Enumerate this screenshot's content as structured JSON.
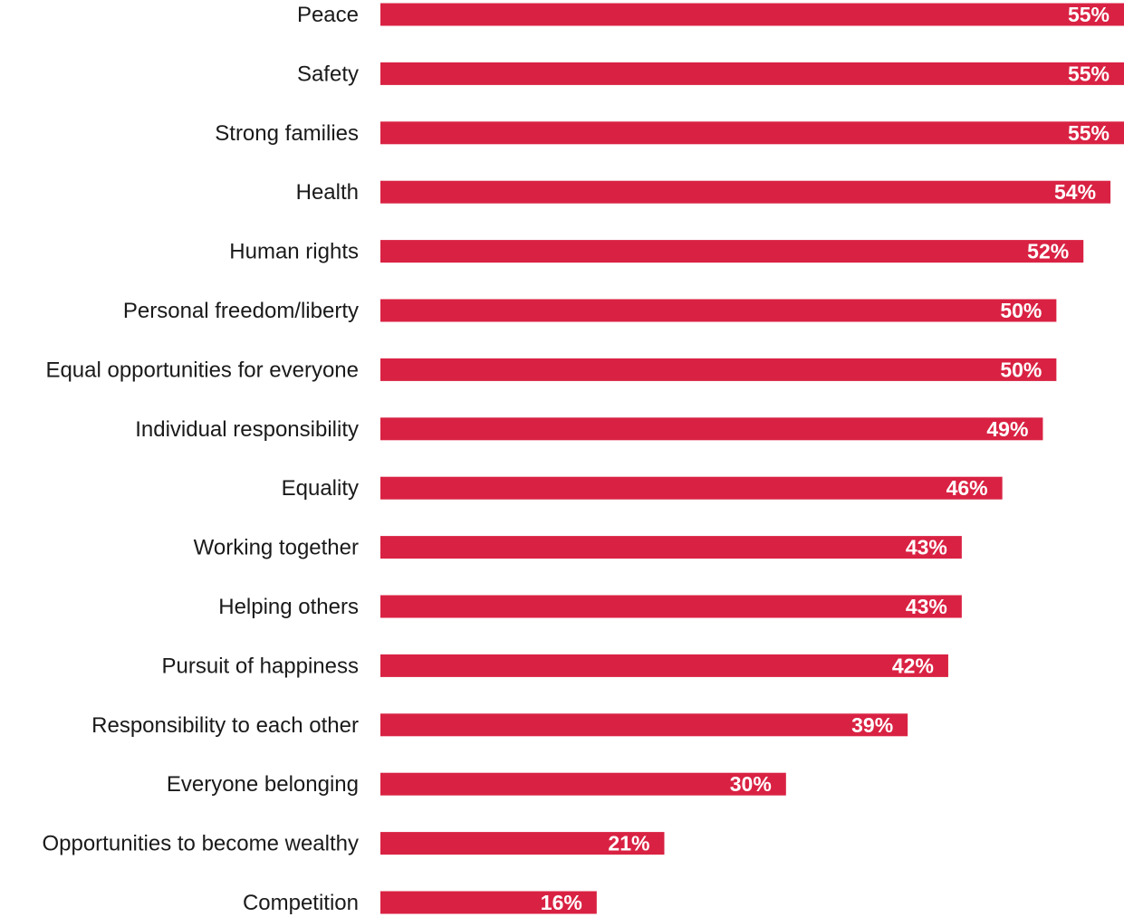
{
  "chart_data": {
    "type": "bar",
    "orientation": "horizontal",
    "categories": [
      "Peace",
      "Safety",
      "Strong families",
      "Health",
      "Human rights",
      "Personal freedom/liberty",
      "Equal opportunities for everyone",
      "Individual responsibility",
      "Equality",
      "Working together",
      "Helping others",
      "Pursuit of happiness",
      "Responsibility to each other",
      "Everyone belonging",
      "Opportunities to become wealthy",
      "Competition"
    ],
    "values": [
      55,
      55,
      55,
      54,
      52,
      50,
      50,
      49,
      46,
      43,
      43,
      42,
      39,
      30,
      21,
      16
    ],
    "value_labels": [
      "55%",
      "55%",
      "55%",
      "54%",
      "52%",
      "50%",
      "50%",
      "49%",
      "46%",
      "43%",
      "43%",
      "42%",
      "39%",
      "30%",
      "21%",
      "16%"
    ],
    "unit": "%",
    "xlim": [
      0,
      55
    ],
    "grid": false,
    "legend": "none",
    "bar_color": "#d92243",
    "title": "",
    "xlabel": "",
    "ylabel": ""
  }
}
